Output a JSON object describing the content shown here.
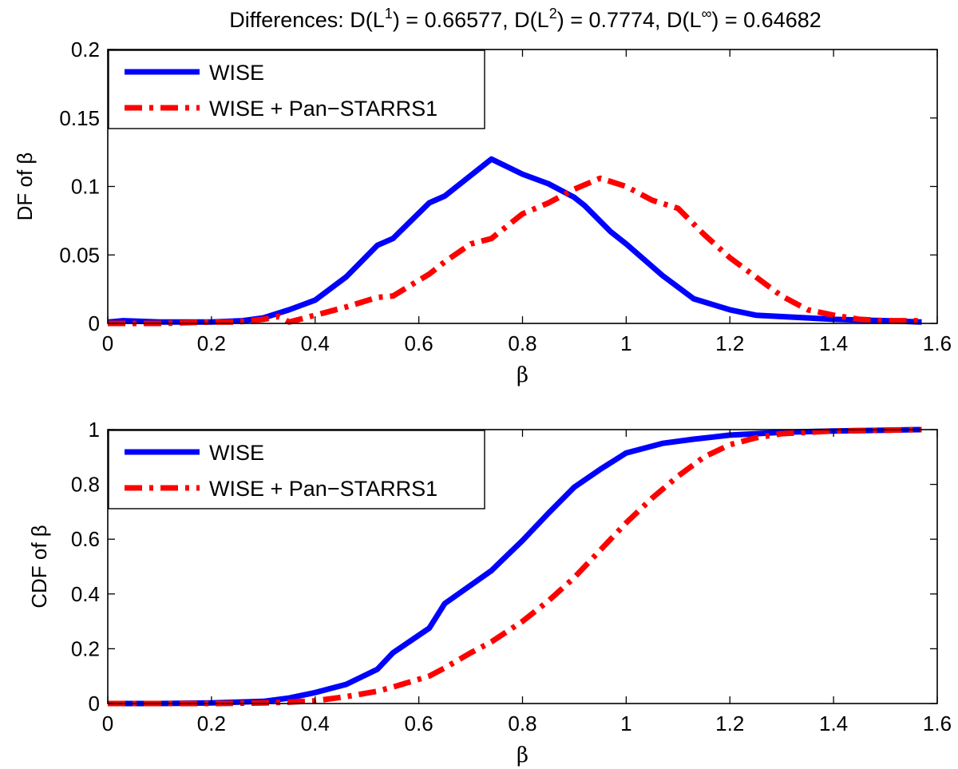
{
  "title": {
    "prefix": "Differences: D(L",
    "sup1": "1",
    "mid1": ") = 0.66577, D(L",
    "sup2": "2",
    "mid2": ") = 0.7774, D(L",
    "sup3": "∞",
    "end": ") = 0.64682"
  },
  "colors": {
    "wise": "#0000ff",
    "panstarrs": "#ff0000"
  },
  "chart_data": [
    {
      "type": "line",
      "title": "Differences: D(L1) = 0.66577, D(L2) = 0.7774, D(L∞) = 0.64682",
      "xlabel": "β",
      "ylabel": "DF of β",
      "xlim": [
        0,
        1.6
      ],
      "ylim": [
        0,
        0.2
      ],
      "xticks": [
        0,
        0.2,
        0.4,
        0.6,
        0.8,
        1,
        1.2,
        1.4,
        1.6
      ],
      "xtick_labels": [
        "0",
        "0.2",
        "0.4",
        "0.6",
        "0.8",
        "1",
        "1.2",
        "1.4",
        "1.6"
      ],
      "yticks": [
        0,
        0.05,
        0.1,
        0.15,
        0.2
      ],
      "ytick_labels": [
        "0",
        "0.05",
        "0.1",
        "0.15",
        "0.2"
      ],
      "legend_position": "top-left",
      "series": [
        {
          "name": "WISE",
          "style": "solid",
          "x": [
            0,
            0.03,
            0.1,
            0.2,
            0.26,
            0.3,
            0.35,
            0.4,
            0.46,
            0.52,
            0.55,
            0.62,
            0.65,
            0.74,
            0.8,
            0.85,
            0.9,
            0.92,
            0.97,
            1.0,
            1.07,
            1.13,
            1.2,
            1.25,
            1.35,
            1.4,
            1.5,
            1.57
          ],
          "y": [
            0.001,
            0.002,
            0.001,
            0.001,
            0.002,
            0.004,
            0.01,
            0.017,
            0.034,
            0.057,
            0.062,
            0.088,
            0.093,
            0.12,
            0.109,
            0.102,
            0.092,
            0.086,
            0.067,
            0.058,
            0.035,
            0.018,
            0.01,
            0.006,
            0.004,
            0.003,
            0.002,
            0.001
          ]
        },
        {
          "name": "WISE + Pan−STARRS1",
          "style": "dashdot",
          "x": [
            0,
            0.1,
            0.2,
            0.25,
            0.3,
            0.33,
            0.35,
            0.4,
            0.46,
            0.52,
            0.55,
            0.62,
            0.65,
            0.7,
            0.74,
            0.8,
            0.85,
            0.9,
            0.95,
            1.0,
            1.05,
            1.1,
            1.15,
            1.2,
            1.25,
            1.3,
            1.35,
            1.4,
            1.45,
            1.5,
            1.57
          ],
          "y": [
            0,
            0,
            0.001,
            0.001,
            0.003,
            0.005,
            0.001,
            0.006,
            0.012,
            0.019,
            0.02,
            0.036,
            0.045,
            0.058,
            0.062,
            0.08,
            0.088,
            0.098,
            0.106,
            0.1,
            0.09,
            0.084,
            0.065,
            0.048,
            0.034,
            0.02,
            0.01,
            0.006,
            0.003,
            0.002,
            0.002
          ]
        }
      ]
    },
    {
      "type": "line",
      "title": "",
      "xlabel": "β",
      "ylabel": "CDF of β",
      "xlim": [
        0,
        1.6
      ],
      "ylim": [
        0,
        1
      ],
      "xticks": [
        0,
        0.2,
        0.4,
        0.6,
        0.8,
        1,
        1.2,
        1.4,
        1.6
      ],
      "xtick_labels": [
        "0",
        "0.2",
        "0.4",
        "0.6",
        "0.8",
        "1",
        "1.2",
        "1.4",
        "1.6"
      ],
      "yticks": [
        0,
        0.2,
        0.4,
        0.6,
        0.8,
        1
      ],
      "ytick_labels": [
        "0",
        "0.2",
        "0.4",
        "0.6",
        "0.8",
        "1"
      ],
      "legend_position": "top-left",
      "series": [
        {
          "name": "WISE",
          "style": "solid",
          "x": [
            0,
            0.1,
            0.2,
            0.3,
            0.35,
            0.4,
            0.46,
            0.52,
            0.55,
            0.62,
            0.65,
            0.74,
            0.8,
            0.85,
            0.9,
            0.95,
            1.0,
            1.07,
            1.13,
            1.2,
            1.3,
            1.4,
            1.5,
            1.57
          ],
          "y": [
            0,
            0,
            0.002,
            0.008,
            0.02,
            0.04,
            0.07,
            0.125,
            0.185,
            0.275,
            0.365,
            0.485,
            0.595,
            0.695,
            0.79,
            0.855,
            0.915,
            0.95,
            0.965,
            0.98,
            0.99,
            0.995,
            0.998,
            1.0
          ]
        },
        {
          "name": "WISE + Pan−STARRS1",
          "style": "dashdot",
          "x": [
            0,
            0.2,
            0.3,
            0.35,
            0.4,
            0.46,
            0.52,
            0.55,
            0.62,
            0.65,
            0.7,
            0.74,
            0.8,
            0.85,
            0.9,
            0.95,
            1.0,
            1.05,
            1.1,
            1.15,
            1.2,
            1.25,
            1.3,
            1.4,
            1.5,
            1.57
          ],
          "y": [
            0,
            0,
            0.002,
            0.005,
            0.01,
            0.025,
            0.045,
            0.06,
            0.1,
            0.13,
            0.185,
            0.225,
            0.3,
            0.375,
            0.46,
            0.56,
            0.66,
            0.75,
            0.83,
            0.9,
            0.945,
            0.97,
            0.985,
            0.995,
            0.998,
            1.0
          ]
        }
      ]
    }
  ]
}
